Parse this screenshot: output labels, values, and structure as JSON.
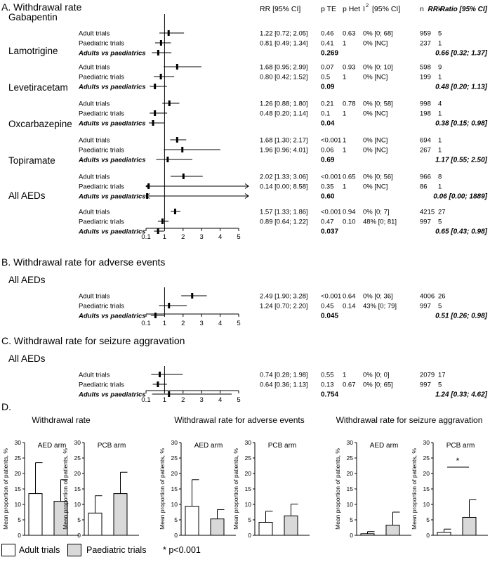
{
  "headers": {
    "rr": "RR [95% CI]",
    "pte": "p TE",
    "phet": "p Het",
    "i2": "I",
    "i2_sup": "2",
    "i2_ci": "[95% CI]",
    "n": "n",
    "k": "k",
    "ratio": "RR Ratio  [95% CI]"
  },
  "axis_ticks": [
    "0.1",
    "1",
    "2",
    "3",
    "4",
    "5"
  ],
  "forest_sections": [
    {
      "title": "A. Withdrawal rate",
      "xlim": [
        0,
        5
      ],
      "groups": [
        {
          "name": "Gabapentin",
          "rows": [
            {
              "label": "Adult trials",
              "rr": 1.22,
              "lo": 0.72,
              "hi": 2.05,
              "rr_text": "1.22 [0.72; 2.05]",
              "pte": "0.46",
              "phet": "0.63",
              "i2": "0% [0; 68]",
              "n": "959",
              "k": "5"
            },
            {
              "label": "Paediatric trials",
              "rr": 0.81,
              "lo": 0.49,
              "hi": 1.34,
              "rr_text": "0.81 [0.49; 1.34]",
              "pte": "0.41",
              "phet": "1",
              "i2": "0% [NC]",
              "n": "237",
              "k": "1"
            }
          ],
          "comparison": {
            "label": "Adults vs paediatrics",
            "rr": 0.66,
            "lo": 0.32,
            "hi": 1.37,
            "pte": "0.269",
            "ratio_text": "0.66 [0.32; 1.37]"
          }
        },
        {
          "name": "Lamotrigine",
          "rows": [
            {
              "label": "Adult trials",
              "rr": 1.68,
              "lo": 0.95,
              "hi": 2.99,
              "rr_text": "1.68 [0.95; 2.99]",
              "pte": "0.07",
              "phet": "0.93",
              "i2": "0% [0; 10]",
              "n": "598",
              "k": "9"
            },
            {
              "label": "Paediatric trials",
              "rr": 0.8,
              "lo": 0.42,
              "hi": 1.52,
              "rr_text": "0.80 [0.42; 1.52]",
              "pte": "0.5",
              "phet": "1",
              "i2": "0% [NC]",
              "n": "199",
              "k": "1"
            }
          ],
          "comparison": {
            "label": "Adults vs paediatrics",
            "rr": 0.48,
            "lo": 0.2,
            "hi": 1.13,
            "pte": "0.09",
            "ratio_text": "0.48 [0.20; 1.13]"
          }
        },
        {
          "name": "Levetiracetam",
          "rows": [
            {
              "label": "Adult trials",
              "rr": 1.26,
              "lo": 0.88,
              "hi": 1.8,
              "rr_text": "1.26 [0.88; 1.80]",
              "pte": "0.21",
              "phet": "0.78",
              "i2": "0% [0; 58]",
              "n": "998",
              "k": "4"
            },
            {
              "label": "Paediatric trials",
              "rr": 0.48,
              "lo": 0.2,
              "hi": 1.14,
              "rr_text": "0.48 [0.20; 1.14]",
              "pte": "0.1",
              "phet": "1",
              "i2": "0% [NC]",
              "n": "198",
              "k": "1"
            }
          ],
          "comparison": {
            "label": "Adults vs paediatrics",
            "rr": 0.38,
            "lo": 0.15,
            "hi": 0.98,
            "pte": "0.04",
            "ratio_text": "0.38 [0.15; 0.98]"
          }
        },
        {
          "name": "Oxcarbazepine",
          "rows": [
            {
              "label": "Adult trials",
              "rr": 1.68,
              "lo": 1.3,
              "hi": 2.17,
              "rr_text": "1.68 [1.30; 2.17]",
              "pte": "<0.001",
              "phet": "1",
              "i2": "0% [NC]",
              "n": "694",
              "k": "1"
            },
            {
              "label": "Paediatric trials",
              "rr": 1.96,
              "lo": 0.96,
              "hi": 4.01,
              "rr_text": "1.96 [0.96; 4.01]",
              "pte": "0.06",
              "phet": "1",
              "i2": "0% [NC]",
              "n": "267",
              "k": "1"
            }
          ],
          "comparison": {
            "label": "Adults vs paediatrics",
            "rr": 1.17,
            "lo": 0.55,
            "hi": 2.5,
            "pte": "0.69",
            "ratio_text": "1.17 [0.55; 2.50]"
          }
        },
        {
          "name": "Topiramate",
          "rows": [
            {
              "label": "Adult trials",
              "rr": 2.02,
              "lo": 1.33,
              "hi": 3.06,
              "rr_text": "2.02 [1.33; 3.06]",
              "pte": "<0.001",
              "phet": "0.65",
              "i2": "0% [0; 56]",
              "n": "966",
              "k": "8"
            },
            {
              "label": "Paediatric trials",
              "rr": 0.14,
              "lo": 0.0,
              "hi": 8.58,
              "rr_text": "0.14 [0.00; 8.58]",
              "pte": "0.35",
              "phet": "1",
              "i2": "0% [NC]",
              "n": "86",
              "k": "1"
            }
          ],
          "comparison": {
            "label": "Adults vs paediatrics",
            "rr": 0.06,
            "lo": 0.0,
            "hi": 1889,
            "pte": "0.60",
            "ratio_text": "0.06 [0.00; 1889]"
          }
        },
        {
          "name": "All AEDs",
          "rows": [
            {
              "label": "Adult trials",
              "rr": 1.57,
              "lo": 1.33,
              "hi": 1.86,
              "rr_text": "1.57 [1.33; 1.86]",
              "pte": "<0.001",
              "phet": "0.94",
              "i2": "0% [0; 7]",
              "n": "4215",
              "k": "27"
            },
            {
              "label": "Paediatric trials",
              "rr": 0.89,
              "lo": 0.64,
              "hi": 1.22,
              "rr_text": "0.89 [0.64; 1.22]",
              "pte": "0.47",
              "phet": "0.10",
              "i2": "48% [0; 81]",
              "n": "997",
              "k": "5"
            }
          ],
          "comparison": {
            "label": "Adults vs paediatrics",
            "rr": 0.65,
            "lo": 0.43,
            "hi": 0.98,
            "pte": "0.037",
            "ratio_text": "0.65 [0.43; 0.98]"
          }
        }
      ]
    },
    {
      "title": "B. Withdrawal rate for adverse events",
      "xlim": [
        0,
        5
      ],
      "groups": [
        {
          "name": "All AEDs",
          "rows": [
            {
              "label": "Adult trials",
              "rr": 2.49,
              "lo": 1.9,
              "hi": 3.28,
              "rr_text": "2.49 [1.90; 3.28]",
              "pte": "<0.001",
              "phet": "0.64",
              "i2": "0% [0; 36]",
              "n": "4006",
              "k": "26"
            },
            {
              "label": "Paediatric trials",
              "rr": 1.24,
              "lo": 0.7,
              "hi": 2.2,
              "rr_text": "1.24 [0.70; 2.20]",
              "pte": "0.45",
              "phet": "0.14",
              "i2": "43% [0; 79]",
              "n": "997",
              "k": "5"
            }
          ],
          "comparison": {
            "label": "Adults vs paediatrics",
            "rr": 0.51,
            "lo": 0.26,
            "hi": 0.98,
            "pte": "0.045",
            "ratio_text": "0.51 [0.26; 0.98]"
          }
        }
      ]
    },
    {
      "title": "C. Withdrawal rate for seizure aggravation",
      "xlim": [
        0,
        5
      ],
      "groups": [
        {
          "name": "All AEDs",
          "rows": [
            {
              "label": "Adult trials",
              "rr": 0.74,
              "lo": 0.28,
              "hi": 1.98,
              "rr_text": "0.74 [0.28; 1.98]",
              "pte": "0.55",
              "phet": "1",
              "i2": "0% [0; 0]",
              "n": "2079",
              "k": "17"
            },
            {
              "label": "Paediatric trials",
              "rr": 0.64,
              "lo": 0.36,
              "hi": 1.13,
              "rr_text": "0.64 [0.36; 1.13]",
              "pte": "0.13",
              "phet": "0.67",
              "i2": "0% [0; 65]",
              "n": "997",
              "k": "5"
            }
          ],
          "comparison": {
            "label": "Adults vs paediatrics",
            "rr": 1.24,
            "lo": 0.33,
            "hi": 4.62,
            "pte": "0.754",
            "ratio_text": "1.24 [0.33; 4.62]"
          }
        }
      ]
    }
  ],
  "bar_section": {
    "title": "D.",
    "ylabel": "Mean proportion of patients, %",
    "yticks": [
      0,
      5,
      10,
      15,
      20,
      25,
      30
    ],
    "ylim": [
      0,
      30
    ],
    "groups": [
      {
        "title": "Withdrawal rate",
        "panels": [
          {
            "label": "AED arm",
            "adult": 13.5,
            "adult_err": 23.5,
            "paed": 11.0,
            "paed_err": 18.0,
            "sig": ""
          },
          {
            "label": "PCB arm",
            "adult": 7.2,
            "adult_err": 12.8,
            "paed": 13.5,
            "paed_err": 20.4,
            "sig": ""
          }
        ]
      },
      {
        "title": "Withdrawal rate for adverse events",
        "panels": [
          {
            "label": "AED arm",
            "adult": 9.4,
            "adult_err": 18.0,
            "paed": 5.3,
            "paed_err": 8.3,
            "sig": ""
          },
          {
            "label": "PCB arm",
            "adult": 4.2,
            "adult_err": 7.8,
            "paed": 6.3,
            "paed_err": 10.1,
            "sig": ""
          }
        ]
      },
      {
        "title": "Withdrawal rate for seizure aggravation",
        "panels": [
          {
            "label": "AED arm",
            "adult": 0.5,
            "adult_err": 1.2,
            "paed": 3.3,
            "paed_err": 7.5,
            "sig": ""
          },
          {
            "label": "PCB arm",
            "adult": 1.0,
            "adult_err": 2.0,
            "paed": 5.8,
            "paed_err": 11.5,
            "sig": "*"
          }
        ]
      }
    ]
  },
  "legend": {
    "adult": "Adult trials",
    "paed": "Paediatric trials",
    "note": "* p<0.001"
  },
  "colors": {
    "adult_fill": "#ffffff",
    "paed_fill": "#d9d9d9",
    "line": "#000000"
  },
  "chart_data": [
    {
      "type": "forest",
      "title": "A. Withdrawal rate",
      "xlim": [
        0,
        5
      ],
      "xticks": [
        "0.1",
        "1",
        "2",
        "3",
        "4",
        "5"
      ],
      "series": [
        {
          "name": "Gabapentin",
          "adult": [
            1.22,
            0.72,
            2.05
          ],
          "paediatric": [
            0.81,
            0.49,
            1.34
          ],
          "ratio": [
            0.66,
            0.32,
            1.37
          ]
        },
        {
          "name": "Lamotrigine",
          "adult": [
            1.68,
            0.95,
            2.99
          ],
          "paediatric": [
            0.8,
            0.42,
            1.52
          ],
          "ratio": [
            0.48,
            0.2,
            1.13
          ]
        },
        {
          "name": "Levetiracetam",
          "adult": [
            1.26,
            0.88,
            1.8
          ],
          "paediatric": [
            0.48,
            0.2,
            1.14
          ],
          "ratio": [
            0.38,
            0.15,
            0.98
          ]
        },
        {
          "name": "Oxcarbazepine",
          "adult": [
            1.68,
            1.3,
            2.17
          ],
          "paediatric": [
            1.96,
            0.96,
            4.01
          ],
          "ratio": [
            1.17,
            0.55,
            2.5
          ]
        },
        {
          "name": "Topiramate",
          "adult": [
            2.02,
            1.33,
            3.06
          ],
          "paediatric": [
            0.14,
            0.0,
            8.58
          ],
          "ratio": [
            0.06,
            0.0,
            1889
          ]
        },
        {
          "name": "All AEDs",
          "adult": [
            1.57,
            1.33,
            1.86
          ],
          "paediatric": [
            0.89,
            0.64,
            1.22
          ],
          "ratio": [
            0.65,
            0.43,
            0.98
          ]
        }
      ]
    },
    {
      "type": "forest",
      "title": "B. Withdrawal rate for adverse events",
      "xlim": [
        0,
        5
      ],
      "series": [
        {
          "name": "All AEDs",
          "adult": [
            2.49,
            1.9,
            3.28
          ],
          "paediatric": [
            1.24,
            0.7,
            2.2
          ],
          "ratio": [
            0.51,
            0.26,
            0.98
          ]
        }
      ]
    },
    {
      "type": "forest",
      "title": "C. Withdrawal rate for seizure aggravation",
      "xlim": [
        0,
        5
      ],
      "series": [
        {
          "name": "All AEDs",
          "adult": [
            0.74,
            0.28,
            1.98
          ],
          "paediatric": [
            0.64,
            0.36,
            1.13
          ],
          "ratio": [
            1.24,
            0.33,
            4.62
          ]
        }
      ]
    },
    {
      "type": "bar",
      "title": "D.",
      "ylabel": "Mean proportion of patients, %",
      "ylim": [
        0,
        30
      ],
      "categories": [
        "Adult trials",
        "Paediatric trials"
      ],
      "series": [
        {
          "name": "Withdrawal rate AED arm",
          "values": [
            13.5,
            11.0
          ],
          "error_top": [
            23.5,
            18.0
          ]
        },
        {
          "name": "Withdrawal rate PCB arm",
          "values": [
            7.2,
            13.5
          ],
          "error_top": [
            12.8,
            20.4
          ]
        },
        {
          "name": "Withdrawal rate for adverse events AED arm",
          "values": [
            9.4,
            5.3
          ],
          "error_top": [
            18.0,
            8.3
          ]
        },
        {
          "name": "Withdrawal rate for adverse events PCB arm",
          "values": [
            4.2,
            6.3
          ],
          "error_top": [
            7.8,
            10.1
          ]
        },
        {
          "name": "Withdrawal rate for seizure aggravation AED arm",
          "values": [
            0.5,
            3.3
          ],
          "error_top": [
            1.2,
            7.5
          ]
        },
        {
          "name": "Withdrawal rate for seizure aggravation PCB arm",
          "values": [
            1.0,
            5.8
          ],
          "error_top": [
            2.0,
            11.5
          ]
        }
      ]
    }
  ]
}
